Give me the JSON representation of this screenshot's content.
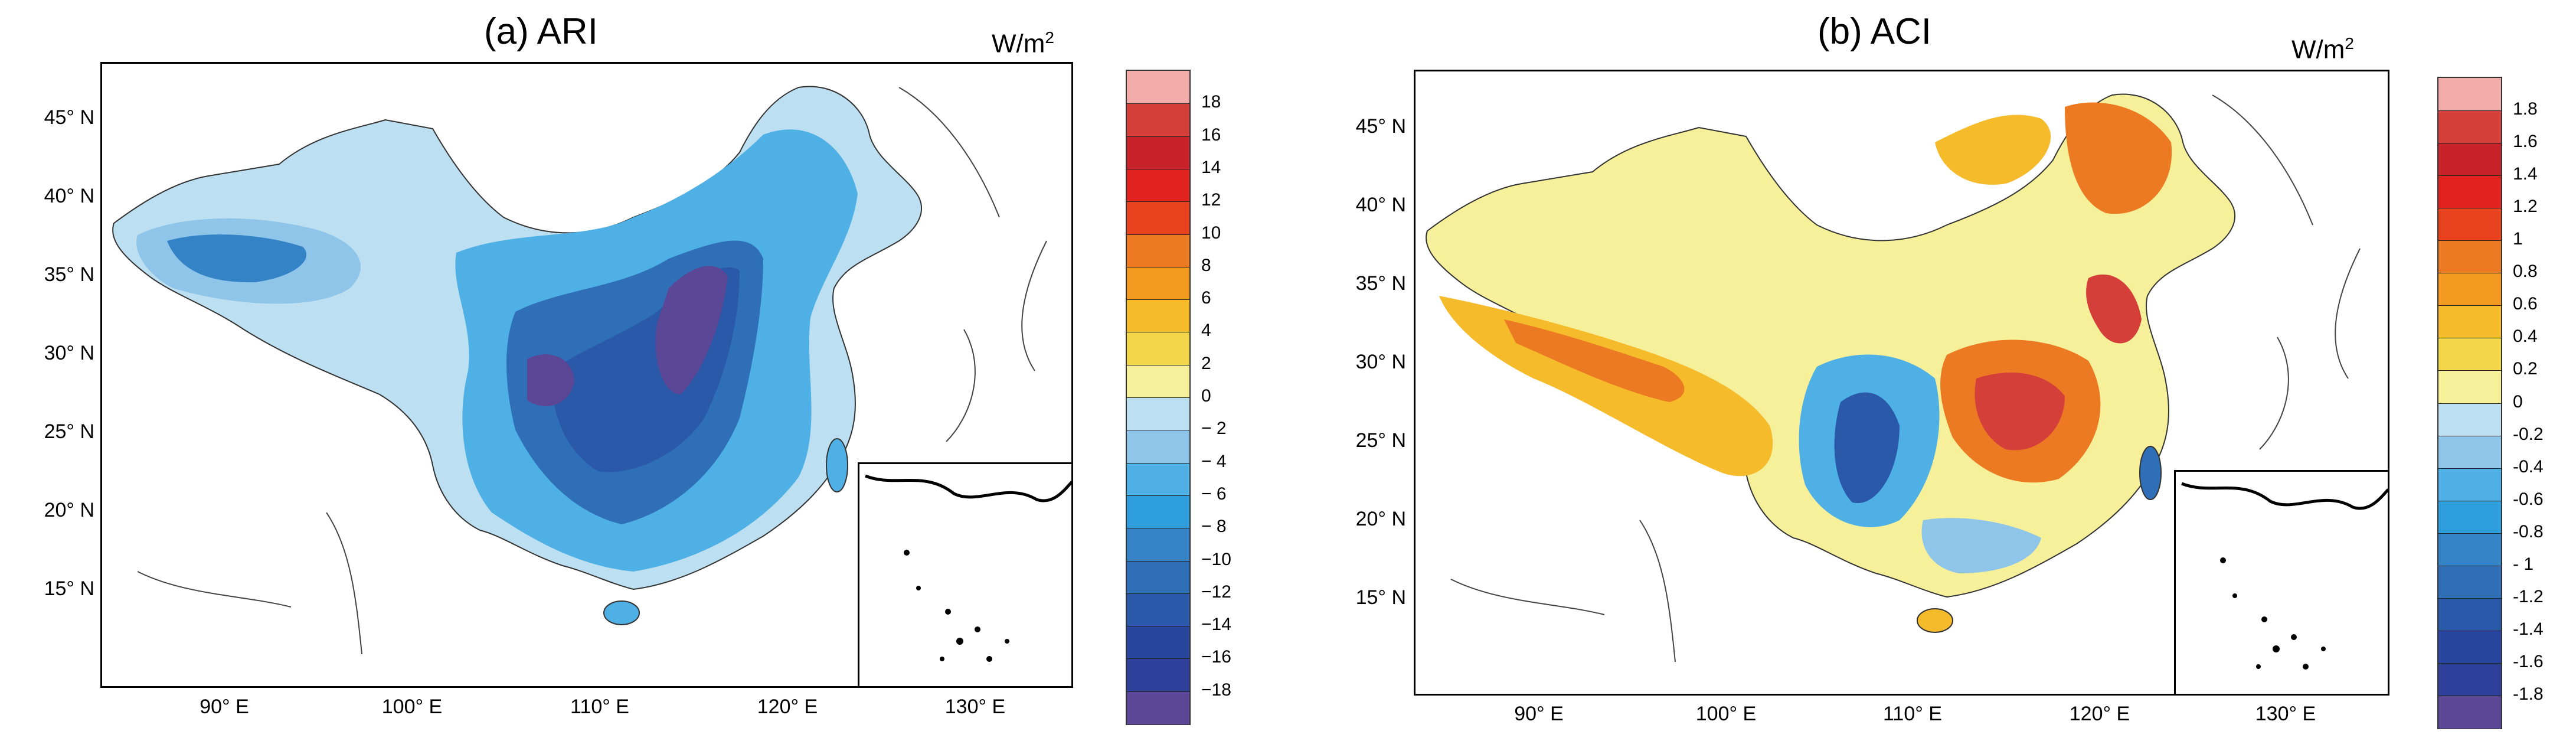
{
  "panels": [
    {
      "id": "a",
      "title": "(a) ARI",
      "unit": "W/m",
      "unit_sup": "2",
      "lat_ticks": [
        "45° N",
        "40° N",
        "35° N",
        "30° N",
        "25° N",
        "20° N",
        "15° N"
      ],
      "lon_ticks": [
        "90° E",
        "100° E",
        "110° E",
        "120° E",
        "130° E"
      ],
      "colorbar_labels": [
        "18",
        "16",
        "14",
        "12",
        "10",
        "8",
        "6",
        "4",
        "2",
        "0",
        "− 2",
        "− 4",
        "− 6",
        "− 8",
        "−10",
        "−12",
        "−14",
        "−16",
        "−18"
      ],
      "colorbar_colors": [
        "#f2acaa",
        "#d43f3a",
        "#c8232b",
        "#e2221f",
        "#e8431e",
        "#ec7a22",
        "#f29a20",
        "#f5bb2b",
        "#f4d64b",
        "#f6f09a",
        "#bcdff1",
        "#8ec5e8",
        "#4eb0e4",
        "#2e9fdc",
        "#3583c7",
        "#2f6fb7",
        "#2a59a9",
        "#28469e",
        "#2d3f98",
        "#5c4796"
      ]
    },
    {
      "id": "b",
      "title": "(b) ACI",
      "unit": "W/m",
      "unit_sup": "2",
      "lat_ticks": [
        "45° N",
        "40° N",
        "35° N",
        "30° N",
        "25° N",
        "20° N",
        "15° N"
      ],
      "lon_ticks": [
        "90° E",
        "100° E",
        "110° E",
        "120° E",
        "130° E"
      ],
      "colorbar_labels": [
        "1.8",
        "1.6",
        "1.4",
        "1.2",
        "1",
        "0.8",
        "0.6",
        "0.4",
        "0.2",
        "0",
        "-0.2",
        "-0.4",
        "-0.6",
        "-0.8",
        "- 1",
        "-1.2",
        "-1.4",
        "-1.6",
        "-1.8"
      ],
      "colorbar_colors": [
        "#f2acaa",
        "#d43f3a",
        "#c8232b",
        "#e2221f",
        "#e8431e",
        "#ec7a22",
        "#f29a20",
        "#f5bb2b",
        "#f4d64b",
        "#f6f09a",
        "#bcdff1",
        "#8ec5e8",
        "#4eb0e4",
        "#2e9fdc",
        "#3583c7",
        "#2f6fb7",
        "#2a59a9",
        "#28469e",
        "#2d3f98",
        "#5c4796"
      ]
    }
  ]
}
